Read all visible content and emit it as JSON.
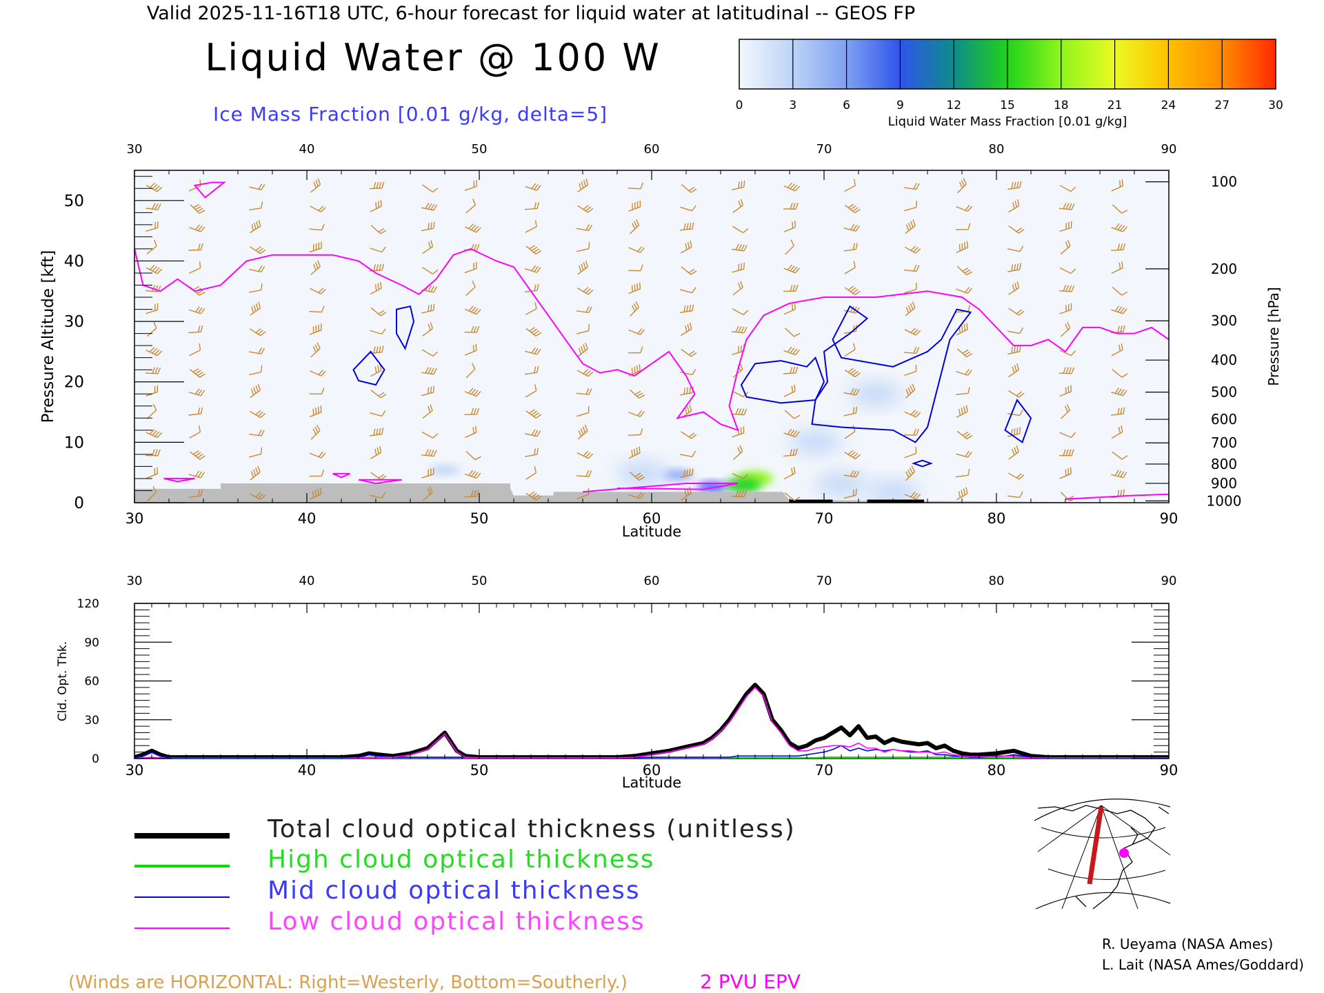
{
  "header": {
    "valid_line": "Valid 2025-11-16T18 UTC, 6-hour forecast for liquid water at latitudinal -- GEOS FP",
    "title": "Liquid Water @ 100 W",
    "subtitle": "Ice Mass Fraction [0.01 g/kg, delta=5]"
  },
  "colorbar": {
    "ticks": [
      "0",
      "3",
      "6",
      "9",
      "12",
      "15",
      "18",
      "21",
      "24",
      "27",
      "30"
    ],
    "label": "Liquid Water Mass Fraction [0.01 g/kg]",
    "colors": [
      "#f4f7fd",
      "#bcd3f7",
      "#7fa0f2",
      "#2d55ea",
      "#0f8c8a",
      "#22d11c",
      "#8ef61d",
      "#ecf923",
      "#ffc000",
      "#ff8a00",
      "#ff2a00"
    ]
  },
  "colors": {
    "wind": "#c8892e",
    "epv": "#ff00ff",
    "ice": "#0000dd",
    "terrain": "#bdbdbd",
    "total": "#000000",
    "high": "#00dd00",
    "mid": "#0000ee",
    "low": "#ff00ff",
    "track": "#c8181a"
  },
  "chart_data": [
    {
      "type": "heatmap",
      "name": "liquid-water-cross-section",
      "xlabel": "Latitude",
      "ylabel": "Pressure Altitude [kft]",
      "ylabel_right": "Pressure [hPa]",
      "xlim": [
        30,
        90
      ],
      "ylim": [
        0,
        55
      ],
      "x_ticks": [
        "30",
        "40",
        "50",
        "60",
        "70",
        "80",
        "90"
      ],
      "y_ticks": [
        "0",
        "10",
        "20",
        "30",
        "40",
        "50"
      ],
      "pressure_ticks": [
        {
          "label": "100",
          "kft": 53.1
        },
        {
          "label": "200",
          "kft": 38.7
        },
        {
          "label": "300",
          "kft": 30.1
        },
        {
          "label": "400",
          "kft": 23.6
        },
        {
          "label": "500",
          "kft": 18.3
        },
        {
          "label": "600",
          "kft": 13.8
        },
        {
          "label": "700",
          "kft": 9.9
        },
        {
          "label": "800",
          "kft": 6.4
        },
        {
          "label": "900",
          "kft": 3.2
        },
        {
          "label": "1000",
          "kft": 0.3
        }
      ],
      "liquid_water_blobs": [
        {
          "lat": 66.0,
          "kft": 4.0,
          "value": 18
        },
        {
          "lat": 65.3,
          "kft": 2.9,
          "value": 14
        },
        {
          "lat": 63.5,
          "kft": 2.6,
          "value": 10
        },
        {
          "lat": 61.5,
          "kft": 4.6,
          "value": 6
        },
        {
          "lat": 48.0,
          "kft": 5.4,
          "value": 4
        },
        {
          "lat": 59.5,
          "kft": 4.8,
          "value": 3
        },
        {
          "lat": 71.0,
          "kft": 3.0,
          "value": 3
        },
        {
          "lat": 74.0,
          "kft": 1.8,
          "value": 3
        },
        {
          "lat": 69.5,
          "kft": 10.0,
          "value": 2
        },
        {
          "lat": 73.0,
          "kft": 18.0,
          "value": 2
        }
      ],
      "epv_2pvu_kft": [
        [
          30,
          42
        ],
        [
          30.5,
          36
        ],
        [
          31.5,
          35
        ],
        [
          32.5,
          37
        ],
        [
          33.5,
          35
        ],
        [
          35,
          36
        ],
        [
          36.5,
          40
        ],
        [
          38,
          41
        ],
        [
          40,
          41
        ],
        [
          41.5,
          41
        ],
        [
          43,
          40
        ],
        [
          44,
          38
        ],
        [
          45.5,
          36
        ],
        [
          46.5,
          34.5
        ],
        [
          47.5,
          37
        ],
        [
          48.5,
          41
        ],
        [
          49.5,
          42
        ],
        [
          51,
          40
        ],
        [
          52,
          39
        ],
        [
          53,
          35
        ],
        [
          54,
          31
        ],
        [
          55,
          27
        ],
        [
          56,
          23
        ],
        [
          57,
          21.5
        ],
        [
          58,
          22
        ],
        [
          59,
          21
        ],
        [
          60,
          23
        ],
        [
          61,
          25
        ],
        [
          62,
          21
        ],
        [
          62.5,
          18
        ],
        [
          61.5,
          14
        ],
        [
          63,
          15
        ],
        [
          64,
          13
        ],
        [
          65,
          12
        ],
        [
          64.5,
          16
        ],
        [
          65,
          22
        ],
        [
          65.5,
          27
        ],
        [
          66.5,
          31
        ],
        [
          68,
          33
        ],
        [
          70,
          34
        ],
        [
          73,
          34
        ],
        [
          76,
          35
        ],
        [
          78,
          34
        ],
        [
          79,
          32
        ],
        [
          80,
          29
        ],
        [
          81,
          26
        ],
        [
          82,
          26
        ],
        [
          83,
          27
        ],
        [
          84,
          25
        ],
        [
          85,
          29
        ],
        [
          86,
          29
        ],
        [
          87,
          28
        ],
        [
          88,
          28
        ],
        [
          89,
          29
        ],
        [
          90,
          27
        ]
      ],
      "ice_contours_kft": [
        [
          [
            45.2,
            32
          ],
          [
            46,
            32.5
          ],
          [
            46.2,
            30
          ],
          [
            45.7,
            25.5
          ],
          [
            45.2,
            28
          ],
          [
            45.2,
            32
          ]
        ],
        [
          [
            43.7,
            25
          ],
          [
            44.5,
            22
          ],
          [
            44,
            19.5
          ],
          [
            43,
            20.2
          ],
          [
            42.7,
            22
          ],
          [
            43.7,
            25
          ]
        ],
        [
          [
            34.5,
            53
          ],
          [
            35.2,
            53
          ],
          [
            34.1,
            50.5
          ],
          [
            33.5,
            52.5
          ],
          [
            34.5,
            53
          ]
        ],
        [
          [
            66,
            23
          ],
          [
            67.5,
            23.5
          ],
          [
            69,
            22.5
          ],
          [
            69.5,
            24
          ],
          [
            70,
            20
          ],
          [
            69.5,
            17
          ],
          [
            67.5,
            16.5
          ],
          [
            65.5,
            17.5
          ],
          [
            65.2,
            19.5
          ],
          [
            66,
            23
          ]
        ],
        [
          [
            70.5,
            27
          ],
          [
            71.5,
            32.5
          ],
          [
            72.5,
            30.5
          ],
          [
            71.5,
            28
          ],
          [
            70,
            25
          ],
          [
            70.2,
            20
          ],
          [
            69.5,
            17
          ],
          [
            69.3,
            13
          ],
          [
            71,
            12.5
          ],
          [
            74,
            12
          ],
          [
            75.3,
            10
          ],
          [
            76,
            12.5
          ],
          [
            77.3,
            27
          ],
          [
            78.5,
            31.5
          ],
          [
            77.7,
            32
          ],
          [
            76.8,
            27
          ],
          [
            76,
            25
          ],
          [
            74,
            22.5
          ],
          [
            71,
            24
          ],
          [
            70.5,
            27
          ]
        ],
        [
          [
            81.2,
            17
          ],
          [
            82,
            14
          ],
          [
            81.5,
            10
          ],
          [
            80.5,
            12
          ],
          [
            81.2,
            17
          ]
        ],
        [
          [
            75.7,
            7
          ],
          [
            76.2,
            6.5
          ],
          [
            75.7,
            6
          ],
          [
            75.2,
            6.5
          ],
          [
            75.7,
            7
          ]
        ]
      ],
      "wind_barb_columns_lat": [
        31,
        33.5,
        37,
        40.5,
        44,
        47,
        49.5,
        53,
        56,
        59,
        62,
        65,
        68,
        71.5,
        75,
        78,
        81,
        84,
        87
      ]
    },
    {
      "type": "line",
      "name": "cloud-optical-thickness",
      "xlabel": "Latitude",
      "ylabel": "Cld. Opt. Thk.",
      "xlim": [
        30,
        90
      ],
      "ylim": [
        0,
        120
      ],
      "x_ticks": [
        "30",
        "40",
        "50",
        "60",
        "70",
        "80",
        "90"
      ],
      "y_ticks": [
        "0",
        "30",
        "60",
        "90",
        "120"
      ],
      "x": [
        30,
        30.5,
        31,
        31.5,
        32,
        35,
        38,
        40,
        42,
        43,
        43.6,
        44.2,
        45,
        46,
        47,
        47.5,
        48,
        48.3,
        48.7,
        49.2,
        50,
        55,
        58,
        59,
        60,
        61,
        62,
        63,
        63.5,
        64,
        64.5,
        65,
        65.5,
        66,
        66.5,
        67,
        67.5,
        68,
        68.5,
        69,
        69.5,
        70,
        70.5,
        71,
        71.5,
        72,
        72.5,
        73,
        73.5,
        74,
        74.5,
        75,
        75.5,
        76,
        76.5,
        77,
        77.5,
        78,
        78.5,
        79,
        80,
        80.5,
        81,
        81.5,
        82,
        83,
        85,
        88,
        90
      ],
      "series": [
        {
          "name": "Total cloud optical thickness (unitless)",
          "values": [
            1,
            3,
            6,
            3,
            1,
            1,
            1,
            1,
            1,
            2,
            4,
            3,
            2,
            4,
            8,
            14,
            20,
            14,
            6,
            2,
            1,
            1,
            1,
            2,
            4,
            6,
            9,
            12,
            16,
            22,
            30,
            40,
            50,
            57,
            50,
            30,
            22,
            12,
            8,
            10,
            14,
            16,
            20,
            24,
            18,
            25,
            16,
            17,
            12,
            15,
            13,
            12,
            11,
            12,
            8,
            10,
            6,
            4,
            3,
            3,
            4,
            5,
            6,
            4,
            2,
            1,
            1,
            1,
            1
          ]
        },
        {
          "name": "High cloud optical thickness",
          "values": [
            0,
            0,
            0,
            0,
            0,
            0,
            0,
            0,
            0,
            0,
            0,
            0,
            0,
            0,
            0,
            0,
            0,
            0,
            0,
            0,
            0,
            0,
            0,
            0,
            0,
            0,
            0,
            0,
            0,
            0,
            0,
            0,
            0,
            0,
            0,
            0,
            0,
            0,
            0,
            0,
            0,
            0.5,
            0.5,
            0.5,
            0.5,
            0.5,
            0.5,
            0.5,
            0.5,
            0.5,
            0.5,
            0.5,
            0.5,
            0.5,
            0.5,
            0.5,
            0.5,
            0.5,
            0.3,
            0.2,
            0.2,
            0.2,
            0.2,
            0.1,
            0,
            0,
            0,
            0,
            0
          ]
        },
        {
          "name": "Mid cloud optical thickness",
          "values": [
            0.5,
            2,
            5,
            2,
            0.5,
            0.5,
            0.5,
            0.5,
            0.5,
            1,
            3,
            2,
            1,
            1,
            1,
            1,
            1,
            1,
            1,
            1,
            0.5,
            0.5,
            0.5,
            0.5,
            1,
            1,
            1,
            1,
            1,
            1,
            1,
            2,
            2,
            2,
            2,
            2,
            2,
            2,
            2,
            3,
            4,
            5,
            7,
            10,
            6,
            8,
            6,
            7,
            6,
            7,
            6,
            5,
            5,
            6,
            3,
            3,
            2,
            2,
            1,
            1,
            2,
            2,
            3,
            2,
            1,
            0.5,
            0.5,
            0.5,
            0.5
          ]
        },
        {
          "name": "Low cloud optical thickness",
          "values": [
            0,
            0.5,
            1,
            0.5,
            0,
            0,
            0,
            0,
            0,
            0.5,
            1,
            1,
            1,
            3,
            7,
            13,
            19,
            13,
            5,
            1,
            0.5,
            0.5,
            0.5,
            1,
            3,
            5,
            8,
            11,
            15,
            21,
            28,
            38,
            48,
            55,
            48,
            28,
            20,
            10,
            6,
            6,
            8,
            9,
            10,
            10,
            9,
            12,
            8,
            8,
            5,
            7,
            6,
            6,
            5,
            5,
            4,
            5,
            3,
            2,
            1.5,
            1.5,
            1.5,
            2,
            2,
            1,
            0.5,
            0.3,
            0.3,
            0.3,
            0.3
          ]
        }
      ]
    }
  ],
  "legend": {
    "total": "Total cloud optical thickness (unitless)",
    "high": "High cloud optical thickness",
    "mid": "Mid cloud optical thickness",
    "low": "Low cloud optical thickness"
  },
  "footer": {
    "winds_note": "(Winds are HORIZONTAL: Right=Westerly, Bottom=Southerly.)",
    "epv_label": "2 PVU EPV",
    "credit1": "R. Ueyama (NASA Ames)",
    "credit2": "L. Lait (NASA Ames/Goddard)"
  }
}
